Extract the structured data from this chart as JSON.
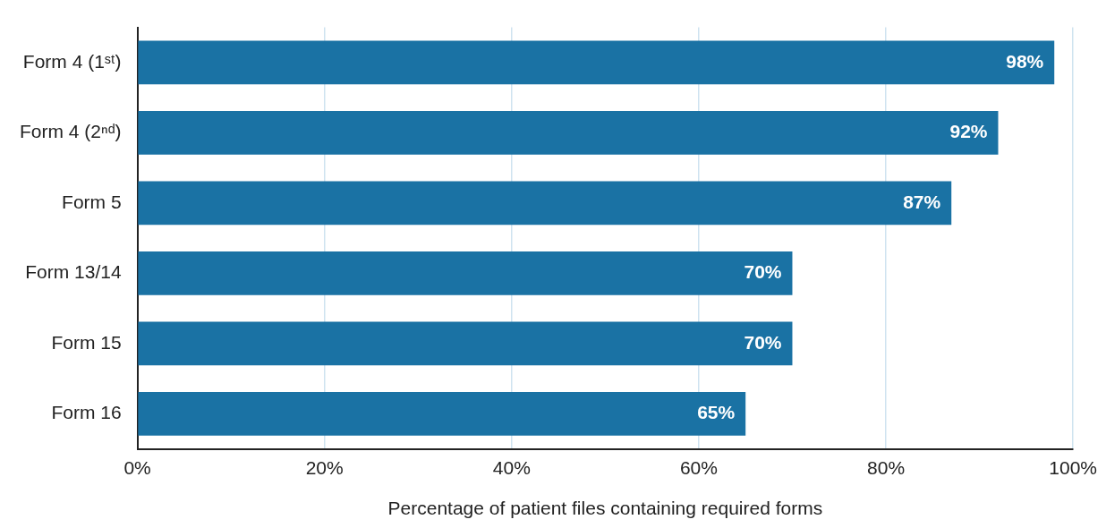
{
  "chart_data": {
    "type": "bar",
    "orientation": "horizontal",
    "xlabel": "Percentage of patient files containing required forms",
    "categories": [
      "Form 4 (1ˢᵗ)",
      "Form 4 (2ⁿᵈ)",
      "Form 5",
      "Form 13/14",
      "Form 15",
      "Form 16"
    ],
    "values": [
      98,
      92,
      87,
      70,
      70,
      65
    ],
    "color": "#1a72a4",
    "value_labels": [
      "98%",
      "92%",
      "87%",
      "70%",
      "70%",
      "65%"
    ],
    "xlim": [
      0,
      100
    ],
    "xticks": [
      {
        "value": 0,
        "label": "0%"
      },
      {
        "value": 20,
        "label": "20%"
      },
      {
        "value": 40,
        "label": "40%"
      },
      {
        "value": 60,
        "label": "60%"
      },
      {
        "value": 80,
        "label": "80%"
      },
      {
        "value": 100,
        "label": "100%"
      }
    ],
    "grid": "x",
    "legend": false
  }
}
